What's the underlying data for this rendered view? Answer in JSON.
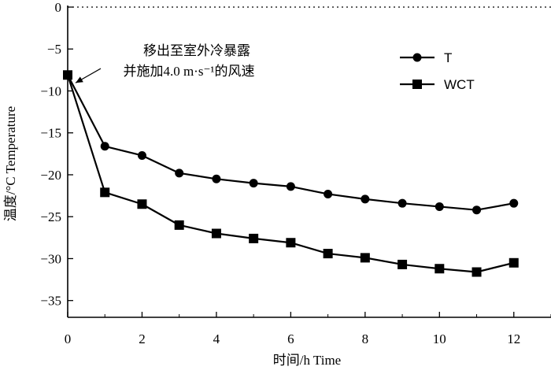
{
  "chart_data": {
    "type": "line",
    "xlabel": "时间/h Time",
    "ylabel": "温度/°C Temperature",
    "xlim": [
      0,
      13
    ],
    "ylim": [
      -37,
      0
    ],
    "xticks": [
      0,
      2,
      4,
      6,
      8,
      10,
      12
    ],
    "yticks": [
      0,
      -5,
      -10,
      -15,
      -20,
      -25,
      -30,
      -35
    ],
    "x": [
      0,
      1,
      2,
      3,
      4,
      5,
      6,
      7,
      8,
      9,
      10,
      11,
      12
    ],
    "series": [
      {
        "name": "T",
        "marker": "circle",
        "values": [
          -8.1,
          -16.6,
          -17.7,
          -19.8,
          -20.5,
          -21.0,
          -21.4,
          -22.3,
          -22.9,
          -23.4,
          -23.8,
          -24.2,
          -23.4
        ]
      },
      {
        "name": "WCT",
        "marker": "square",
        "values": [
          -8.1,
          -22.1,
          -23.5,
          -26.0,
          -27.0,
          -27.6,
          -28.1,
          -29.4,
          -29.9,
          -30.7,
          -31.2,
          -31.6,
          -30.5
        ]
      }
    ],
    "reference_line": {
      "y": 0,
      "style": "dotted"
    },
    "annotation": {
      "lines": [
        "移出至室外冷暴露",
        "并施加4.0 m·s⁻¹的风速"
      ],
      "points_to": {
        "x": 0,
        "y": -8.1
      }
    },
    "legend_position": "top-right",
    "grid": false
  }
}
